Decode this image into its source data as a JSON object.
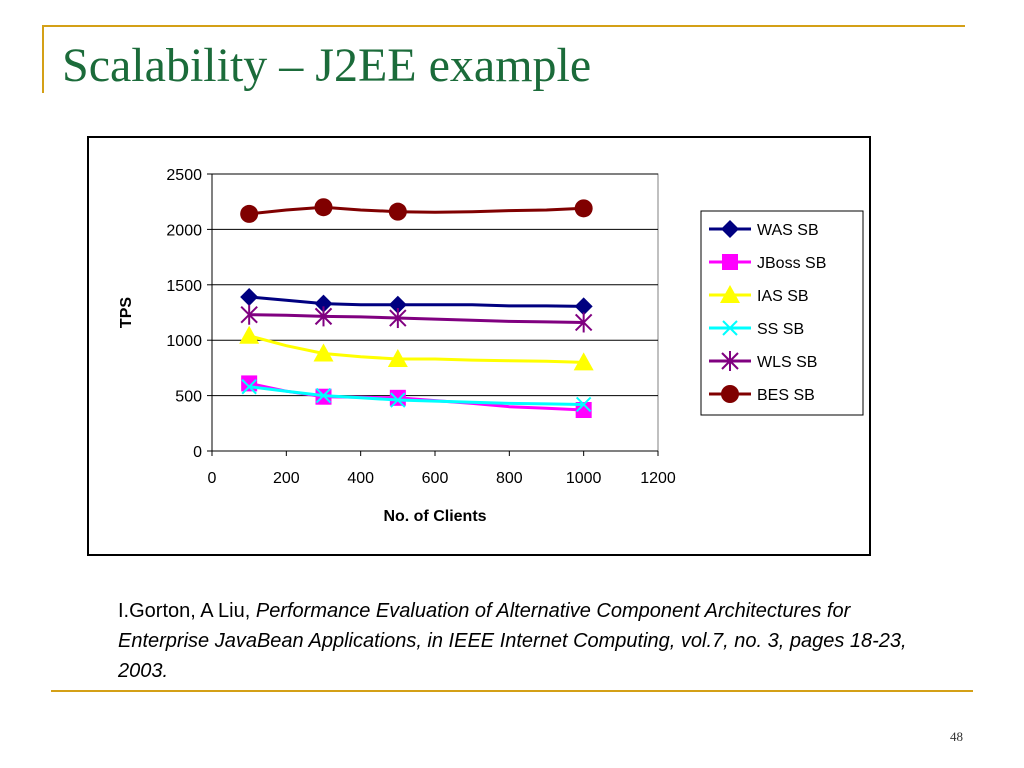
{
  "slide": {
    "title": "Scalability – J2EE example",
    "citation": {
      "authors": "I.Gorton, A Liu, ",
      "reference": "Performance Evaluation of Alternative Component Architectures for Enterprise JavaBean Applications, in IEEE Internet Computing, vol.7, no. 3, pages 18-23, 2003."
    },
    "page_number": "48",
    "accent_color": "#d4a017",
    "title_color": "#1b6b3a"
  },
  "chart_data": {
    "type": "line",
    "title": "",
    "xlabel": "No. of Clients",
    "ylabel": "TPS",
    "xlim": [
      0,
      1200
    ],
    "ylim": [
      0,
      2500
    ],
    "x_ticks": [
      0,
      200,
      400,
      600,
      800,
      1000,
      1200
    ],
    "y_ticks": [
      0,
      500,
      1000,
      1500,
      2000,
      2500
    ],
    "grid": "horizontal",
    "legend_position": "right",
    "series": [
      {
        "name": "WAS SB",
        "color": "#000080",
        "marker": "diamond",
        "x": [
          100,
          300,
          500,
          1000
        ],
        "values": [
          1390,
          1330,
          1320,
          1305
        ],
        "line": [
          [
            100,
            1390
          ],
          [
            200,
            1360
          ],
          [
            300,
            1330
          ],
          [
            400,
            1320
          ],
          [
            500,
            1320
          ],
          [
            600,
            1320
          ],
          [
            700,
            1320
          ],
          [
            800,
            1310
          ],
          [
            900,
            1310
          ],
          [
            1000,
            1305
          ]
        ]
      },
      {
        "name": "JBoss SB",
        "color": "#ff00ff",
        "marker": "square",
        "x": [
          100,
          300,
          500,
          1000
        ],
        "values": [
          610,
          490,
          480,
          370
        ],
        "line": [
          [
            100,
            610
          ],
          [
            200,
            540
          ],
          [
            300,
            490
          ],
          [
            400,
            485
          ],
          [
            500,
            480
          ],
          [
            600,
            455
          ],
          [
            700,
            430
          ],
          [
            800,
            400
          ],
          [
            900,
            385
          ],
          [
            1000,
            370
          ]
        ]
      },
      {
        "name": "IAS SB",
        "color": "#ffff00",
        "marker": "triangle",
        "x": [
          100,
          300,
          500,
          1000
        ],
        "values": [
          1040,
          880,
          830,
          800
        ],
        "line": [
          [
            100,
            1040
          ],
          [
            200,
            950
          ],
          [
            300,
            880
          ],
          [
            400,
            850
          ],
          [
            500,
            830
          ],
          [
            600,
            830
          ],
          [
            700,
            820
          ],
          [
            800,
            815
          ],
          [
            900,
            810
          ],
          [
            1000,
            800
          ]
        ]
      },
      {
        "name": "SS SB",
        "color": "#00ffff",
        "marker": "x",
        "x": [
          100,
          300,
          500,
          1000
        ],
        "values": [
          580,
          500,
          460,
          420
        ],
        "line": [
          [
            100,
            580
          ],
          [
            200,
            540
          ],
          [
            300,
            500
          ],
          [
            400,
            480
          ],
          [
            500,
            460
          ],
          [
            600,
            450
          ],
          [
            700,
            440
          ],
          [
            800,
            430
          ],
          [
            900,
            425
          ],
          [
            1000,
            420
          ]
        ]
      },
      {
        "name": "WLS SB",
        "color": "#800080",
        "marker": "star",
        "x": [
          100,
          300,
          500,
          1000
        ],
        "values": [
          1230,
          1215,
          1200,
          1160
        ],
        "line": [
          [
            100,
            1230
          ],
          [
            200,
            1225
          ],
          [
            300,
            1215
          ],
          [
            400,
            1210
          ],
          [
            500,
            1200
          ],
          [
            600,
            1190
          ],
          [
            700,
            1180
          ],
          [
            800,
            1170
          ],
          [
            900,
            1165
          ],
          [
            1000,
            1160
          ]
        ]
      },
      {
        "name": "BES SB",
        "color": "#800000",
        "marker": "circle",
        "x": [
          100,
          300,
          500,
          1000
        ],
        "values": [
          2140,
          2200,
          2160,
          2190
        ],
        "line": [
          [
            100,
            2140
          ],
          [
            200,
            2175
          ],
          [
            300,
            2200
          ],
          [
            400,
            2175
          ],
          [
            500,
            2160
          ],
          [
            600,
            2155
          ],
          [
            700,
            2160
          ],
          [
            800,
            2170
          ],
          [
            900,
            2175
          ],
          [
            1000,
            2190
          ]
        ]
      }
    ]
  }
}
